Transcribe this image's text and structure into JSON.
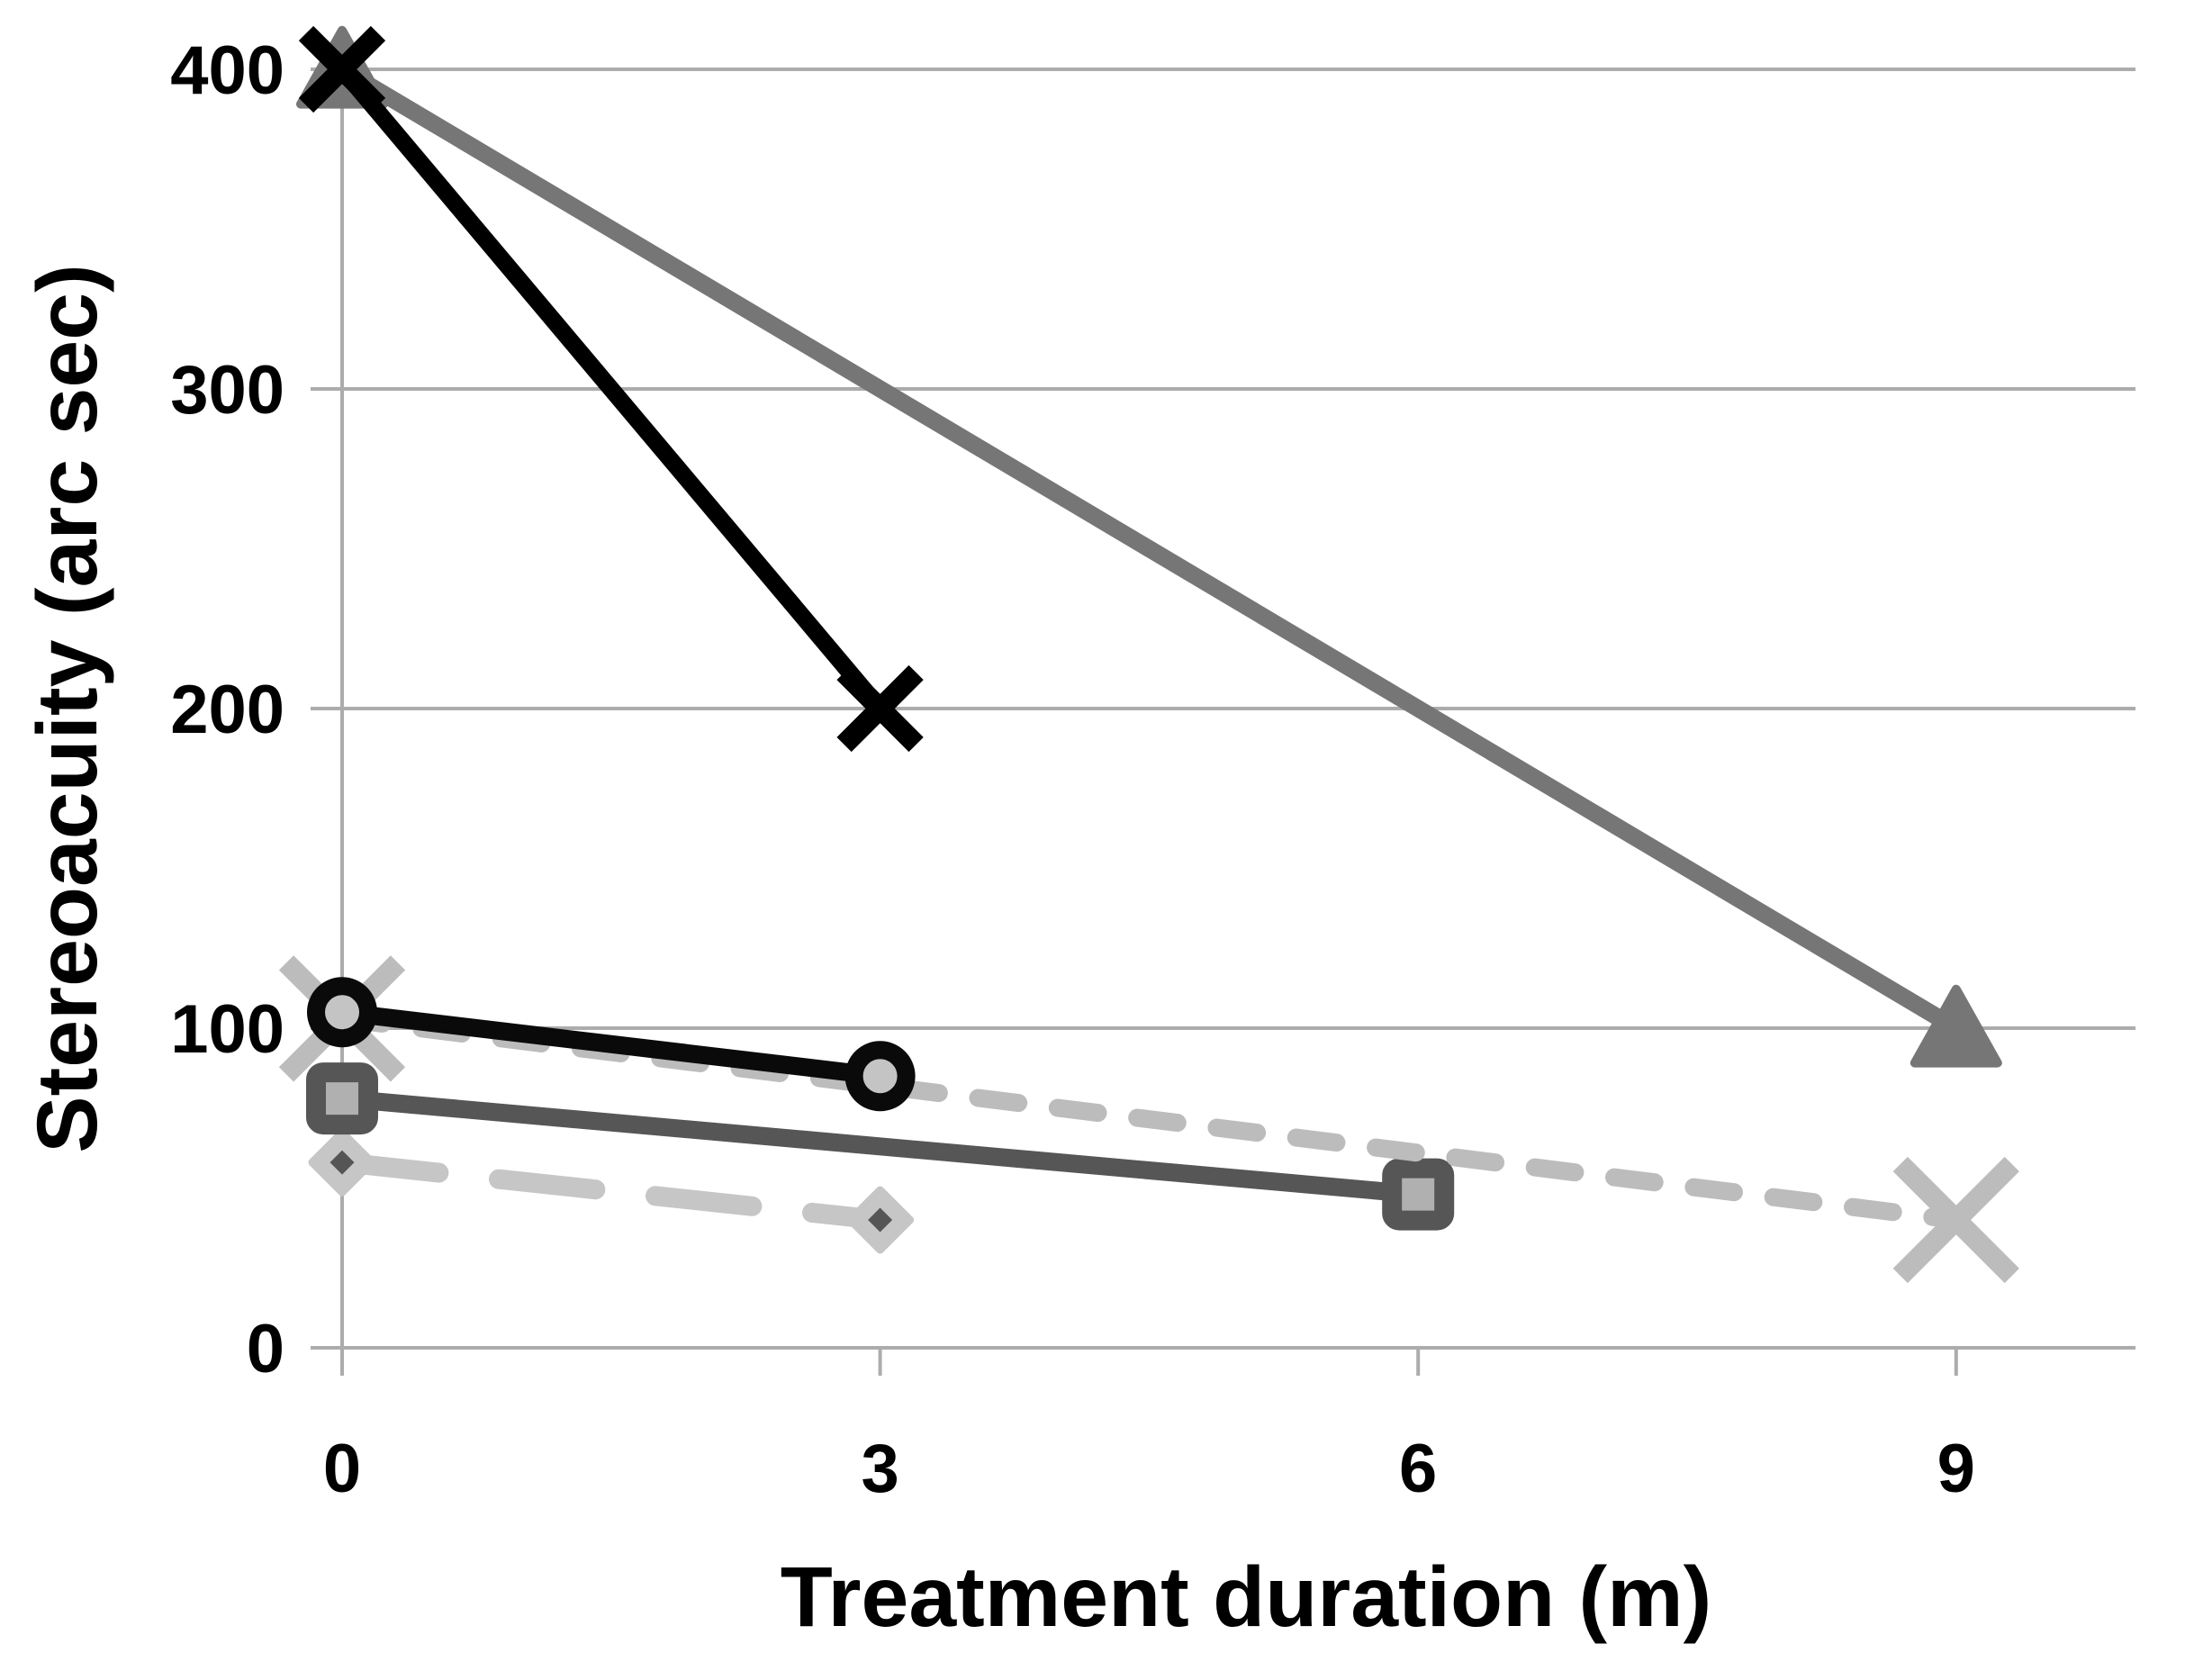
{
  "chart_data": {
    "type": "line",
    "title": "",
    "xlabel": "Treatment duration (m)",
    "ylabel": "Stereoacuity (arc sec)",
    "xlim": [
      0,
      10
    ],
    "ylim": [
      0,
      400
    ],
    "grid": "horizontal",
    "grid_color": "#acacac",
    "axis_color": "#acacac",
    "background_color": "#ffffff",
    "xticks": [
      {
        "value": 0,
        "label": "0"
      },
      {
        "value": 3,
        "label": "3"
      },
      {
        "value": 6,
        "label": "6"
      },
      {
        "value": 9,
        "label": "9"
      }
    ],
    "yticks": [
      {
        "value": 0,
        "label": "0"
      },
      {
        "value": 100,
        "label": "100"
      },
      {
        "value": 200,
        "label": "200"
      },
      {
        "value": 300,
        "label": "300"
      },
      {
        "value": 400,
        "label": "400"
      }
    ],
    "legend": "none",
    "series": [
      {
        "name": "black-x",
        "marker": "x",
        "color": "#000000",
        "line_style": "solid",
        "line_width": 19,
        "marker_size": 80,
        "marker_stroke": 23,
        "points": [
          [
            0,
            400
          ],
          [
            3,
            200
          ]
        ]
      },
      {
        "name": "gray-triangle",
        "marker": "triangle",
        "color": "#767676",
        "line_style": "solid",
        "line_width": 19,
        "marker_size": 92,
        "points": [
          [
            0,
            400
          ],
          [
            9,
            100
          ]
        ]
      },
      {
        "name": "black-circle",
        "marker": "ring",
        "color": "#0a0a0a",
        "marker_fill": "#c4c4c4",
        "line_style": "solid",
        "line_width": 20,
        "marker_size": 78,
        "marker_stroke": 20,
        "points": [
          [
            0,
            105
          ],
          [
            3,
            85
          ]
        ]
      },
      {
        "name": "lightgray-dashed-x",
        "marker": "x",
        "color": "#bcbcbc",
        "line_style": "dashed",
        "dash": "45 44",
        "line_width": 20,
        "marker_size": 124,
        "marker_stroke": 23,
        "points": [
          [
            0,
            103
          ],
          [
            9,
            40
          ]
        ]
      },
      {
        "name": "darkgray-square",
        "marker": "square",
        "color": "#565656",
        "marker_fill": "#b0b0b0",
        "line_style": "solid",
        "line_width": 20,
        "marker_size": 80,
        "marker_stroke": 22,
        "points": [
          [
            0,
            78
          ],
          [
            6,
            48
          ]
        ]
      },
      {
        "name": "lightgray-diamond",
        "marker": "diamond",
        "color": "#c6c6c6",
        "marker_inner_color": "#555555",
        "line_style": "long-dash",
        "dash": "108 67",
        "line_width": 22,
        "marker_size": 66,
        "marker_inner_size": 27,
        "points": [
          [
            0,
            58
          ],
          [
            3,
            40
          ]
        ]
      }
    ],
    "draw_order": [
      "gray-triangle",
      "black-x",
      "lightgray-diamond",
      "darkgray-square",
      "lightgray-dashed-x",
      "black-circle"
    ]
  }
}
